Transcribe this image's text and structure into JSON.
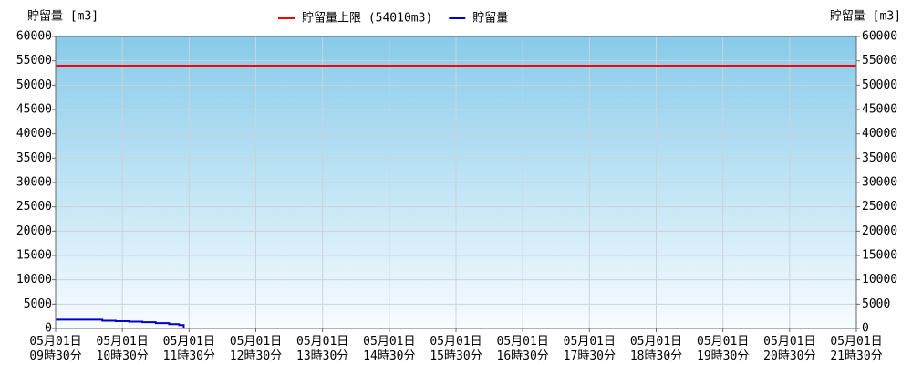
{
  "chart_data": {
    "type": "line",
    "y_label": "貯留量 [m3]",
    "y2_label": "貯留量 [m3]",
    "xlim": [
      9.5,
      21.5
    ],
    "xticks": [
      {
        "value": 9.5,
        "label": "05月01日\n09時30分"
      },
      {
        "value": 10.5,
        "label": "05月01日\n10時30分"
      },
      {
        "value": 11.5,
        "label": "05月01日\n11時30分"
      },
      {
        "value": 12.5,
        "label": "05月01日\n12時30分"
      },
      {
        "value": 13.5,
        "label": "05月01日\n13時30分"
      },
      {
        "value": 14.5,
        "label": "05月01日\n14時30分"
      },
      {
        "value": 15.5,
        "label": "05月01日\n15時30分"
      },
      {
        "value": 16.5,
        "label": "05月01日\n16時30分"
      },
      {
        "value": 17.5,
        "label": "05月01日\n17時30分"
      },
      {
        "value": 18.5,
        "label": "05月01日\n18時30分"
      },
      {
        "value": 19.5,
        "label": "05月01日\n19時30分"
      },
      {
        "value": 20.5,
        "label": "05月01日\n20時30分"
      },
      {
        "value": 21.5,
        "label": "05月01日\n21時30分"
      }
    ],
    "ylim": [
      0,
      60000
    ],
    "yticks": [
      0,
      5000,
      10000,
      15000,
      20000,
      25000,
      30000,
      35000,
      40000,
      45000,
      50000,
      55000,
      60000
    ],
    "y2lim": [
      0,
      60000
    ],
    "y2ticks": [
      0,
      5000,
      10000,
      15000,
      20000,
      25000,
      30000,
      35000,
      40000,
      45000,
      50000,
      55000,
      60000
    ],
    "grid": true,
    "series": [
      {
        "name": "貯留量上限 (54010m3)",
        "color": "#ff0000",
        "x": [
          9.5,
          21.5
        ],
        "values": [
          54010,
          54010
        ]
      },
      {
        "name": "貯留量",
        "color": "#0000cc",
        "x": [
          9.5,
          10.2,
          10.2,
          10.4,
          10.4,
          10.6,
          10.6,
          10.8,
          10.8,
          11.0,
          11.0,
          11.2,
          11.2,
          11.35,
          11.35,
          11.42,
          11.42
        ],
        "values": [
          1800,
          1800,
          1600,
          1600,
          1500,
          1500,
          1400,
          1400,
          1300,
          1300,
          1100,
          1100,
          900,
          900,
          700,
          700,
          0
        ]
      }
    ]
  }
}
